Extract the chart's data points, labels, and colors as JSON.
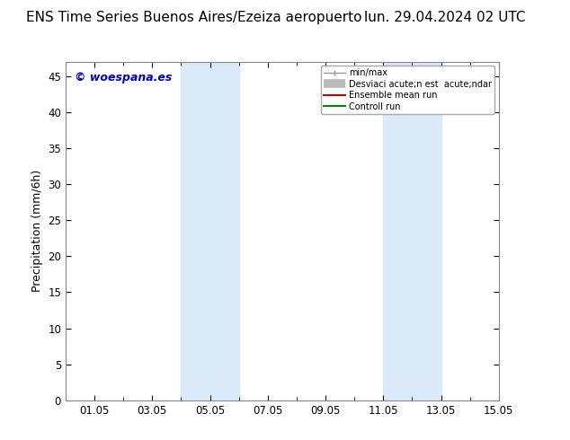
{
  "title_left": "ENS Time Series Buenos Aires/Ezeiza aeropuerto",
  "title_right": "lun. 29.04.2024 02 UTC",
  "ylabel": "Precipitation (mm/6h)",
  "watermark": "© woespana.es",
  "ylim": [
    0,
    47
  ],
  "yticks": [
    0,
    5,
    10,
    15,
    20,
    25,
    30,
    35,
    40,
    45
  ],
  "xtick_labels": [
    "01.05",
    "03.05",
    "05.05",
    "07.05",
    "09.05",
    "11.05",
    "13.05",
    "15.05"
  ],
  "xtick_positions": [
    1,
    3,
    5,
    7,
    9,
    11,
    13,
    15
  ],
  "xlim": [
    0,
    15
  ],
  "shaded_bands": [
    {
      "start": 4.0,
      "end": 6.0
    },
    {
      "start": 11.0,
      "end": 13.0
    }
  ],
  "shade_color": "#daeaf8",
  "legend_labels": [
    "min/max",
    "Desviaci acute;n est  acute;ndar",
    "Ensemble mean run",
    "Controll run"
  ],
  "legend_colors": [
    "#999999",
    "#cccccc",
    "#cc0000",
    "#008800"
  ],
  "background_color": "#ffffff",
  "title_fontsize": 11,
  "axis_label_fontsize": 9,
  "tick_fontsize": 8.5,
  "watermark_color": "#0000cc",
  "border_color": "#888888"
}
